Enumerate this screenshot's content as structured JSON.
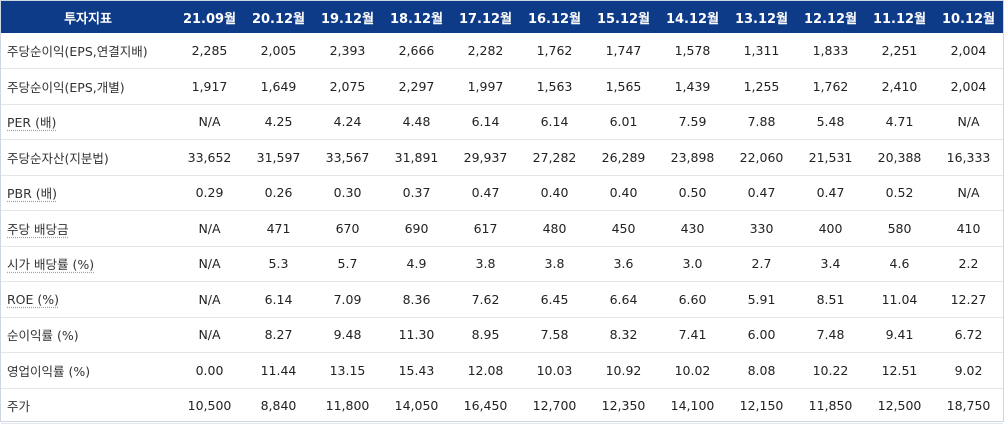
{
  "table": {
    "header": [
      "투자지표",
      "21.09월",
      "20.12월",
      "19.12월",
      "18.12월",
      "17.12월",
      "16.12월",
      "15.12월",
      "14.12월",
      "13.12월",
      "12.12월",
      "11.12월",
      "10.12월"
    ],
    "rows": [
      {
        "label": "주당순이익(EPS,연결지배)",
        "values": [
          "2,285",
          "2,005",
          "2,393",
          "2,666",
          "2,282",
          "1,762",
          "1,747",
          "1,578",
          "1,311",
          "1,833",
          "2,251",
          "2,004"
        ]
      },
      {
        "label": "주당순이익(EPS,개별)",
        "values": [
          "1,917",
          "1,649",
          "2,075",
          "2,297",
          "1,997",
          "1,563",
          "1,565",
          "1,439",
          "1,255",
          "1,762",
          "2,410",
          "2,004"
        ]
      },
      {
        "label": "PER (배)",
        "values": [
          "N/A",
          "4.25",
          "4.24",
          "4.48",
          "6.14",
          "6.14",
          "6.01",
          "7.59",
          "7.88",
          "5.48",
          "4.71",
          "N/A"
        ]
      },
      {
        "label": "주당순자산(지분법)",
        "values": [
          "33,652",
          "31,597",
          "33,567",
          "31,891",
          "29,937",
          "27,282",
          "26,289",
          "23,898",
          "22,060",
          "21,531",
          "20,388",
          "16,333"
        ]
      },
      {
        "label": "PBR (배)",
        "values": [
          "0.29",
          "0.26",
          "0.30",
          "0.37",
          "0.47",
          "0.40",
          "0.40",
          "0.50",
          "0.47",
          "0.47",
          "0.52",
          "N/A"
        ]
      },
      {
        "label": "주당 배당금",
        "values": [
          "N/A",
          "471",
          "670",
          "690",
          "617",
          "480",
          "450",
          "430",
          "330",
          "400",
          "580",
          "410"
        ]
      },
      {
        "label": "시가 배당률 (%)",
        "values": [
          "N/A",
          "5.3",
          "5.7",
          "4.9",
          "3.8",
          "3.8",
          "3.6",
          "3.0",
          "2.7",
          "3.4",
          "4.6",
          "2.2"
        ]
      },
      {
        "label": "ROE (%)",
        "values": [
          "N/A",
          "6.14",
          "7.09",
          "8.36",
          "7.62",
          "6.45",
          "6.64",
          "6.60",
          "5.91",
          "8.51",
          "11.04",
          "12.27"
        ]
      },
      {
        "label": "순이익률 (%)",
        "values": [
          "N/A",
          "8.27",
          "9.48",
          "11.30",
          "8.95",
          "7.58",
          "8.32",
          "7.41",
          "6.00",
          "7.48",
          "9.41",
          "6.72"
        ]
      },
      {
        "label": "영업이익률 (%)",
        "values": [
          "0.00",
          "11.44",
          "13.15",
          "15.43",
          "12.08",
          "10.03",
          "10.92",
          "10.02",
          "8.08",
          "10.22",
          "12.51",
          "9.02"
        ]
      },
      {
        "label": "주가",
        "values": [
          "10,500",
          "8,840",
          "11,800",
          "14,050",
          "16,450",
          "12,700",
          "12,350",
          "14,100",
          "12,150",
          "11,850",
          "12,500",
          "18,750"
        ]
      }
    ],
    "underlined_rows": [
      2,
      4,
      5,
      6,
      7
    ]
  },
  "colors": {
    "header_bg": "#0d3b87",
    "header_text": "#ffffff",
    "row_border": "#e3e6ea"
  }
}
